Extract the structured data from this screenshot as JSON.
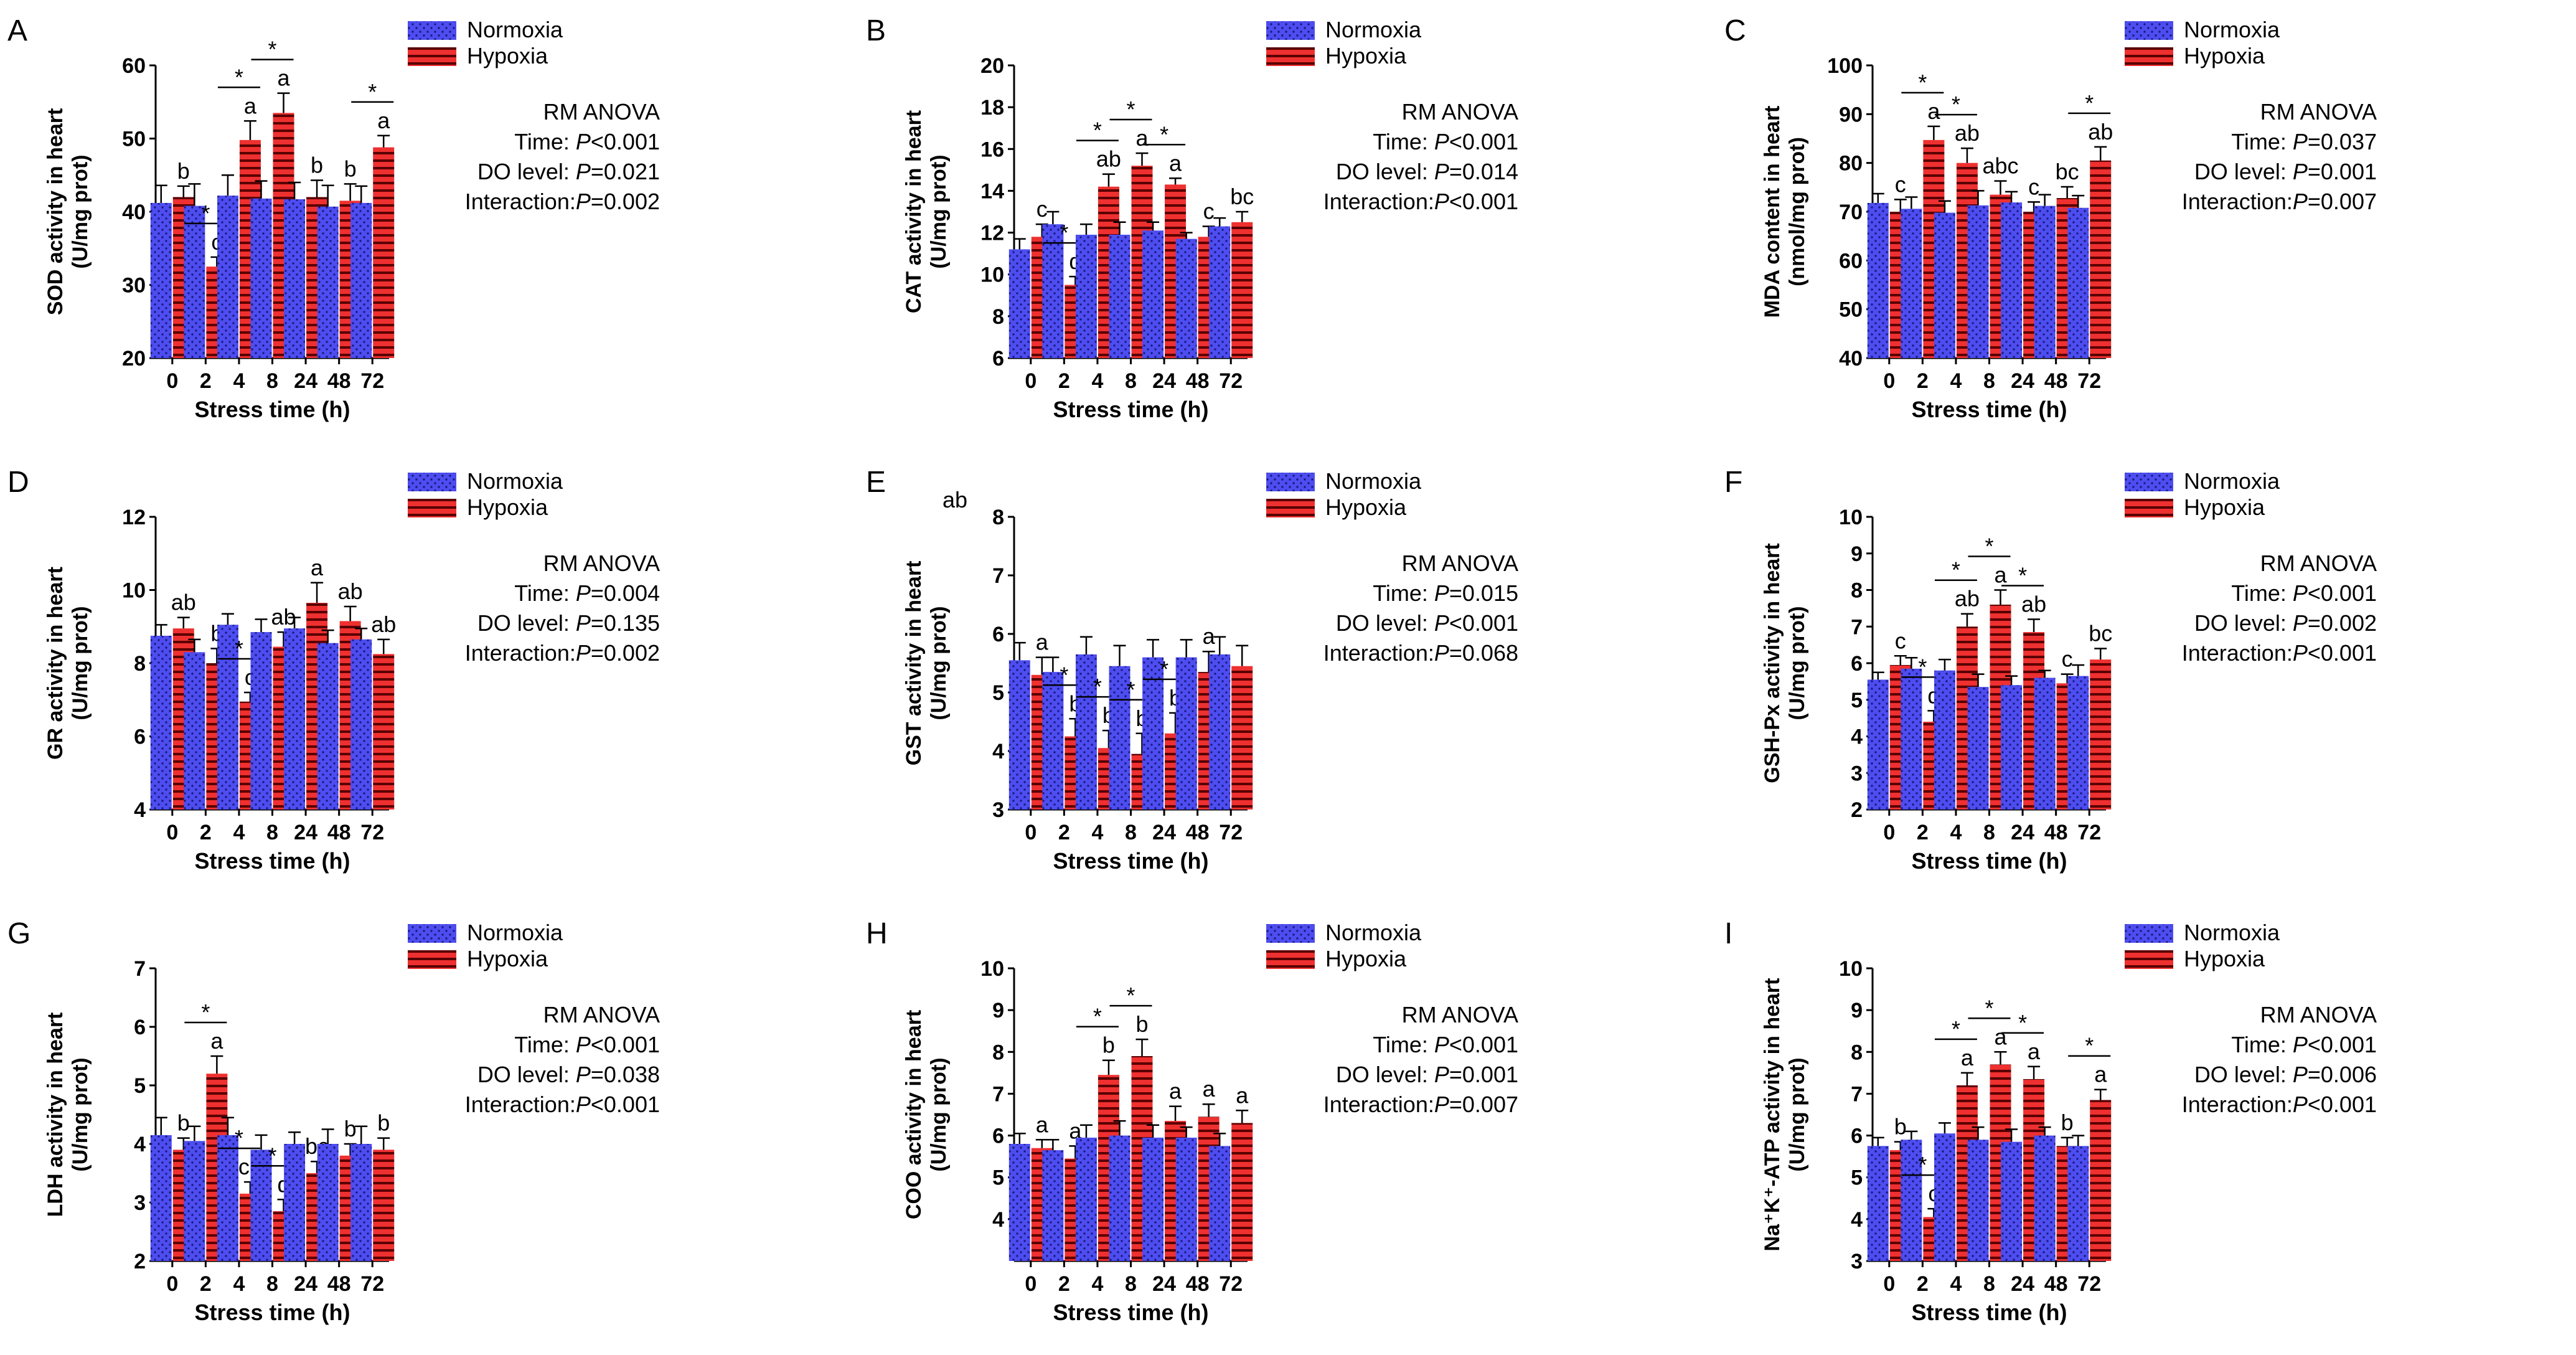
{
  "chart_data": [
    {
      "type": "bar",
      "panel_label": "A",
      "title": "",
      "xlabel": "Stress time (h)",
      "ylabel_lines": [
        "SOD activity in heart",
        "(U/mg prot)"
      ],
      "ylim": [
        20,
        60
      ],
      "yticks": [
        20,
        30,
        40,
        50,
        60
      ],
      "categories": [
        "0",
        "2",
        "4",
        "8",
        "24",
        "48",
        "72"
      ],
      "legend": [
        "Normoxia",
        "Hypoxia"
      ],
      "series": [
        {
          "name": "Normoxia",
          "values": [
            41.2,
            40.8,
            42.2,
            41.8,
            41.7,
            40.7,
            41.2
          ],
          "errors": [
            2.4,
            3.0,
            2.8,
            2.4,
            2.3,
            2.9,
            2.3
          ]
        },
        {
          "name": "Hypoxia",
          "values": [
            42.0,
            32.5,
            49.8,
            53.5,
            42.0,
            41.5,
            48.8
          ],
          "errors": [
            1.5,
            1.3,
            2.6,
            2.7,
            2.3,
            2.3,
            1.6
          ]
        }
      ],
      "letters": [
        "b",
        "c",
        "a",
        "a",
        "b",
        "b",
        "a"
      ],
      "stars": [
        false,
        true,
        true,
        true,
        false,
        false,
        true
      ],
      "anova": {
        "title": "RM ANOVA",
        "rows": [
          [
            "Time: ",
            "P",
            "<0.001"
          ],
          [
            "DO level: ",
            "P",
            "=0.021"
          ],
          [
            "Interaction:",
            "P",
            "=0.002"
          ]
        ]
      },
      "extra_text": ""
    },
    {
      "type": "bar",
      "panel_label": "B",
      "title": "",
      "xlabel": "Stress time (h)",
      "ylabel_lines": [
        "CAT activity in heart",
        "(U/mg prot)"
      ],
      "ylim": [
        6,
        20
      ],
      "yticks": [
        6,
        8,
        10,
        12,
        14,
        16,
        18,
        20
      ],
      "categories": [
        "0",
        "2",
        "4",
        "8",
        "24",
        "48",
        "72"
      ],
      "legend": [
        "Normoxia",
        "Hypoxia"
      ],
      "series": [
        {
          "name": "Normoxia",
          "values": [
            11.2,
            12.4,
            11.9,
            11.9,
            12.1,
            11.7,
            12.3
          ],
          "errors": [
            0.5,
            0.6,
            0.5,
            0.6,
            0.4,
            0.3,
            0.4
          ]
        },
        {
          "name": "Hypoxia",
          "values": [
            11.8,
            9.5,
            14.2,
            15.2,
            14.3,
            11.8,
            12.5
          ],
          "errors": [
            0.6,
            0.4,
            0.6,
            0.6,
            0.3,
            0.5,
            0.5
          ]
        }
      ],
      "letters": [
        "c",
        "d",
        "ab",
        "a",
        "a",
        "c",
        "bc"
      ],
      "stars": [
        false,
        true,
        true,
        true,
        true,
        false,
        false
      ],
      "anova": {
        "title": "RM ANOVA",
        "rows": [
          [
            "Time: ",
            "P",
            "<0.001"
          ],
          [
            "DO level: ",
            "P",
            "=0.014"
          ],
          [
            "Interaction:",
            "P",
            "<0.001"
          ]
        ]
      },
      "extra_text": ""
    },
    {
      "type": "bar",
      "panel_label": "C",
      "title": "",
      "xlabel": "Stress time (h)",
      "ylabel_lines": [
        "MDA content in heart",
        "(nmol/mg prot)"
      ],
      "ylim": [
        40,
        100
      ],
      "yticks": [
        40,
        50,
        60,
        70,
        80,
        90,
        100
      ],
      "categories": [
        "0",
        "2",
        "4",
        "8",
        "24",
        "48",
        "72"
      ],
      "legend": [
        "Normoxia",
        "Hypoxia"
      ],
      "series": [
        {
          "name": "Normoxia",
          "values": [
            71.8,
            70.6,
            69.8,
            71.3,
            71.9,
            71.2,
            70.8
          ],
          "errors": [
            1.9,
            2.4,
            2.4,
            3.0,
            2.2,
            2.3,
            2.5
          ]
        },
        {
          "name": "Hypoxia",
          "values": [
            70.0,
            84.7,
            80.0,
            73.5,
            70.0,
            72.8,
            80.5
          ],
          "errors": [
            2.5,
            2.8,
            3.0,
            2.8,
            2.0,
            2.3,
            2.8
          ]
        }
      ],
      "letters": [
        "c",
        "a",
        "ab",
        "abc",
        "c",
        "bc",
        "ab"
      ],
      "stars": [
        false,
        true,
        true,
        false,
        false,
        false,
        true
      ],
      "anova": {
        "title": "RM ANOVA",
        "rows": [
          [
            "Time: ",
            "P",
            "=0.037"
          ],
          [
            "DO level: ",
            "P",
            "=0.001"
          ],
          [
            "Interaction:",
            "P",
            "=0.007"
          ]
        ]
      },
      "extra_text": ""
    },
    {
      "type": "bar",
      "panel_label": "D",
      "title": "",
      "xlabel": "Stress time (h)",
      "ylabel_lines": [
        "GR activity in heart",
        "(U/mg prot)"
      ],
      "ylim": [
        4,
        12
      ],
      "yticks": [
        4,
        6,
        8,
        10,
        12
      ],
      "categories": [
        "0",
        "2",
        "4",
        "8",
        "24",
        "48",
        "72"
      ],
      "legend": [
        "Normoxia",
        "Hypoxia"
      ],
      "series": [
        {
          "name": "Normoxia",
          "values": [
            8.75,
            8.3,
            9.05,
            8.85,
            8.95,
            8.55,
            8.65
          ],
          "errors": [
            0.3,
            0.35,
            0.3,
            0.35,
            0.3,
            0.35,
            0.3
          ]
        },
        {
          "name": "Hypoxia",
          "values": [
            8.95,
            8.0,
            6.95,
            8.45,
            9.65,
            9.15,
            8.25
          ],
          "errors": [
            0.3,
            0.4,
            0.25,
            0.4,
            0.55,
            0.4,
            0.4
          ]
        }
      ],
      "letters": [
        "ab",
        "b",
        "c",
        "ab",
        "a",
        "ab",
        "ab"
      ],
      "stars": [
        false,
        false,
        true,
        false,
        false,
        false,
        false
      ],
      "anova": {
        "title": "RM ANOVA",
        "rows": [
          [
            "Time: ",
            "P",
            "=0.004"
          ],
          [
            "DO level: ",
            "P",
            "=0.135"
          ],
          [
            "Interaction:",
            "P",
            "=0.002"
          ]
        ]
      },
      "extra_text": ""
    },
    {
      "type": "bar",
      "panel_label": "E",
      "title": "",
      "xlabel": "Stress time (h)",
      "ylabel_lines": [
        "GST activity in heart",
        "(U/mg prot)"
      ],
      "ylim": [
        3,
        8
      ],
      "yticks": [
        3,
        4,
        5,
        6,
        7,
        8
      ],
      "categories": [
        "0",
        "2",
        "4",
        "8",
        "24",
        "48",
        "72"
      ],
      "legend": [
        "Normoxia",
        "Hypoxia"
      ],
      "series": [
        {
          "name": "Normoxia",
          "values": [
            5.55,
            5.35,
            5.65,
            5.45,
            5.6,
            5.6,
            5.65
          ],
          "errors": [
            0.3,
            0.25,
            0.3,
            0.35,
            0.3,
            0.3,
            0.3
          ]
        },
        {
          "name": "Hypoxia",
          "values": [
            5.3,
            4.25,
            4.05,
            3.95,
            4.3,
            5.35,
            5.45
          ],
          "errors": [
            0.3,
            0.3,
            0.3,
            0.35,
            0.35,
            0.35,
            0.35
          ]
        }
      ],
      "letters": [
        "a",
        "b",
        "b",
        "b",
        "b",
        "a",
        ""
      ],
      "stars": [
        false,
        true,
        true,
        true,
        true,
        false,
        false
      ],
      "anova": {
        "title": "RM ANOVA",
        "rows": [
          [
            "Time: ",
            "P",
            "=0.015"
          ],
          [
            "DO level: ",
            "P",
            "<0.001"
          ],
          [
            "Interaction:",
            "P",
            "=0.068"
          ]
        ]
      },
      "extra_text": "ab"
    },
    {
      "type": "bar",
      "panel_label": "F",
      "title": "",
      "xlabel": "Stress time (h)",
      "ylabel_lines": [
        "GSH-Px activity in heart",
        "(U/mg prot)"
      ],
      "ylim": [
        2,
        10
      ],
      "yticks": [
        2,
        3,
        4,
        5,
        6,
        7,
        8,
        9,
        10
      ],
      "categories": [
        "0",
        "2",
        "4",
        "8",
        "24",
        "48",
        "72"
      ],
      "legend": [
        "Normoxia",
        "Hypoxia"
      ],
      "series": [
        {
          "name": "Normoxia",
          "values": [
            5.55,
            5.85,
            5.8,
            5.35,
            5.4,
            5.6,
            5.65
          ],
          "errors": [
            0.2,
            0.3,
            0.3,
            0.35,
            0.25,
            0.2,
            0.3
          ]
        },
        {
          "name": "Hypoxia",
          "values": [
            5.95,
            4.4,
            7.0,
            7.6,
            6.85,
            5.45,
            6.1
          ],
          "errors": [
            0.25,
            0.3,
            0.35,
            0.4,
            0.35,
            0.25,
            0.3
          ]
        }
      ],
      "letters": [
        "c",
        "d",
        "ab",
        "a",
        "ab",
        "c",
        "bc"
      ],
      "stars": [
        false,
        true,
        true,
        true,
        true,
        false,
        false
      ],
      "anova": {
        "title": "RM ANOVA",
        "rows": [
          [
            "Time: ",
            "P",
            "<0.001"
          ],
          [
            "DO level: ",
            "P",
            "=0.002"
          ],
          [
            "Interaction:",
            "P",
            "<0.001"
          ]
        ]
      },
      "extra_text": ""
    },
    {
      "type": "bar",
      "panel_label": "G",
      "title": "",
      "xlabel": "Stress time (h)",
      "ylabel_lines": [
        "LDH activity in heart",
        "(U/mg prot)"
      ],
      "ylim": [
        2,
        7
      ],
      "yticks": [
        2,
        3,
        4,
        5,
        6,
        7
      ],
      "categories": [
        "0",
        "2",
        "4",
        "8",
        "24",
        "48",
        "72"
      ],
      "legend": [
        "Normoxia",
        "Hypoxia"
      ],
      "series": [
        {
          "name": "Normoxia",
          "values": [
            4.15,
            4.05,
            4.15,
            3.9,
            4.0,
            4.0,
            4.0
          ],
          "errors": [
            0.3,
            0.25,
            0.3,
            0.25,
            0.2,
            0.25,
            0.3
          ]
        },
        {
          "name": "Hypoxia",
          "values": [
            3.9,
            5.2,
            3.15,
            2.85,
            3.5,
            3.8,
            3.9
          ],
          "errors": [
            0.2,
            0.3,
            0.2,
            0.2,
            0.2,
            0.2,
            0.2
          ]
        }
      ],
      "letters": [
        "b",
        "a",
        "cd",
        "d",
        "bc",
        "b",
        "b"
      ],
      "stars": [
        false,
        true,
        true,
        true,
        false,
        false,
        false
      ],
      "anova": {
        "title": "RM ANOVA",
        "rows": [
          [
            "Time: ",
            "P",
            "<0.001"
          ],
          [
            "DO level: ",
            "P",
            "=0.038"
          ],
          [
            "Interaction:",
            "P",
            "<0.001"
          ]
        ]
      },
      "extra_text": ""
    },
    {
      "type": "bar",
      "panel_label": "H",
      "title": "",
      "xlabel": "Stress time (h)",
      "ylabel_lines": [
        "COO activity in heart",
        "(U/mg prot)"
      ],
      "ylim": [
        3,
        10
      ],
      "yticks": [
        4,
        5,
        6,
        7,
        8,
        9,
        10
      ],
      "categories": [
        "0",
        "2",
        "4",
        "8",
        "24",
        "48",
        "72"
      ],
      "legend": [
        "Normoxia",
        "Hypoxia"
      ],
      "series": [
        {
          "name": "Normoxia",
          "values": [
            5.8,
            5.65,
            5.95,
            6.0,
            5.95,
            5.95,
            5.75
          ],
          "errors": [
            0.25,
            0.25,
            0.3,
            0.35,
            0.3,
            0.25,
            0.3
          ]
        },
        {
          "name": "Hypoxia",
          "values": [
            5.7,
            5.45,
            7.45,
            7.9,
            6.35,
            6.45,
            6.3
          ],
          "errors": [
            0.2,
            0.3,
            0.35,
            0.4,
            0.35,
            0.3,
            0.3
          ]
        }
      ],
      "letters": [
        "a",
        "a",
        "b",
        "b",
        "a",
        "a",
        "a"
      ],
      "stars": [
        false,
        false,
        true,
        true,
        false,
        false,
        false
      ],
      "anova": {
        "title": "RM ANOVA",
        "rows": [
          [
            "Time: ",
            "P",
            "<0.001"
          ],
          [
            "DO level: ",
            "P",
            "=0.001"
          ],
          [
            "Interaction:",
            "P",
            "=0.007"
          ]
        ]
      },
      "extra_text": ""
    },
    {
      "type": "bar",
      "panel_label": "I",
      "title": "",
      "xlabel": "Stress time (h)",
      "ylabel_lines": [
        "Na⁺K⁺-ATP activity in heart",
        "(U/mg prot)"
      ],
      "ylim": [
        3,
        10
      ],
      "yticks": [
        3,
        4,
        5,
        6,
        7,
        8,
        9,
        10
      ],
      "categories": [
        "0",
        "2",
        "4",
        "8",
        "24",
        "48",
        "72"
      ],
      "legend": [
        "Normoxia",
        "Hypoxia"
      ],
      "series": [
        {
          "name": "Normoxia",
          "values": [
            5.75,
            5.9,
            6.05,
            5.9,
            5.85,
            6.0,
            5.75
          ],
          "errors": [
            0.2,
            0.2,
            0.25,
            0.3,
            0.3,
            0.2,
            0.25
          ]
        },
        {
          "name": "Hypoxia",
          "values": [
            5.65,
            4.05,
            7.2,
            7.7,
            7.35,
            5.75,
            6.85
          ],
          "errors": [
            0.2,
            0.2,
            0.3,
            0.3,
            0.3,
            0.2,
            0.25
          ]
        }
      ],
      "letters": [
        "b",
        "c",
        "a",
        "a",
        "a",
        "b",
        "a"
      ],
      "stars": [
        false,
        true,
        true,
        true,
        true,
        false,
        true
      ],
      "anova": {
        "title": "RM ANOVA",
        "rows": [
          [
            "Time: ",
            "P",
            "<0.001"
          ],
          [
            "DO level: ",
            "P",
            "=0.006"
          ],
          [
            "Interaction:",
            "P",
            "<0.001"
          ]
        ]
      },
      "extra_text": ""
    }
  ],
  "colors": {
    "normoxia": "#4d4df0",
    "normoxia_dots": "#1a1a80",
    "hypoxia": "#ee3030",
    "hypoxia_lines": "#5a0000",
    "axis": "#000000"
  },
  "star_symbol": "*"
}
